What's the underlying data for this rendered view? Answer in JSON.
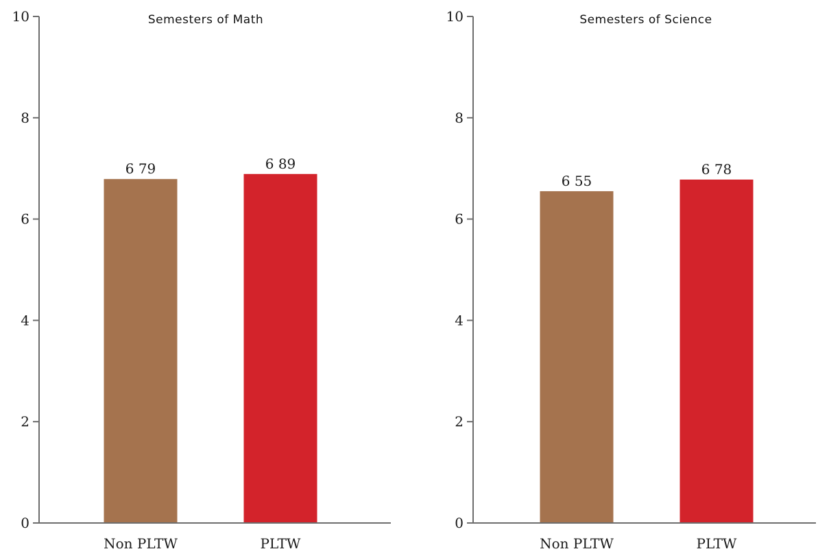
{
  "chart_data": [
    {
      "type": "bar",
      "title": "Semesters of Math",
      "categories": [
        "Non PLTW",
        "PLTW"
      ],
      "values": [
        6.79,
        6.89
      ],
      "value_labels": [
        "6 79",
        "6 89"
      ],
      "colors": [
        "#a5734e",
        "#d3232b"
      ],
      "xlabel": "",
      "ylabel": "",
      "ylim": [
        0,
        10
      ],
      "yticks": [
        "0",
        "2",
        "4",
        "6",
        "8",
        "10"
      ],
      "grid": false,
      "legend": "none"
    },
    {
      "type": "bar",
      "title": "Semesters of Science",
      "categories": [
        "Non PLTW",
        "PLTW"
      ],
      "values": [
        6.55,
        6.78
      ],
      "value_labels": [
        "6 55",
        "6 78"
      ],
      "colors": [
        "#a5734e",
        "#d3232b"
      ],
      "xlabel": "",
      "ylabel": "",
      "ylim": [
        0,
        10
      ],
      "yticks": [
        "0",
        "2",
        "4",
        "6",
        "8",
        "10"
      ],
      "grid": false,
      "legend": "none"
    }
  ]
}
